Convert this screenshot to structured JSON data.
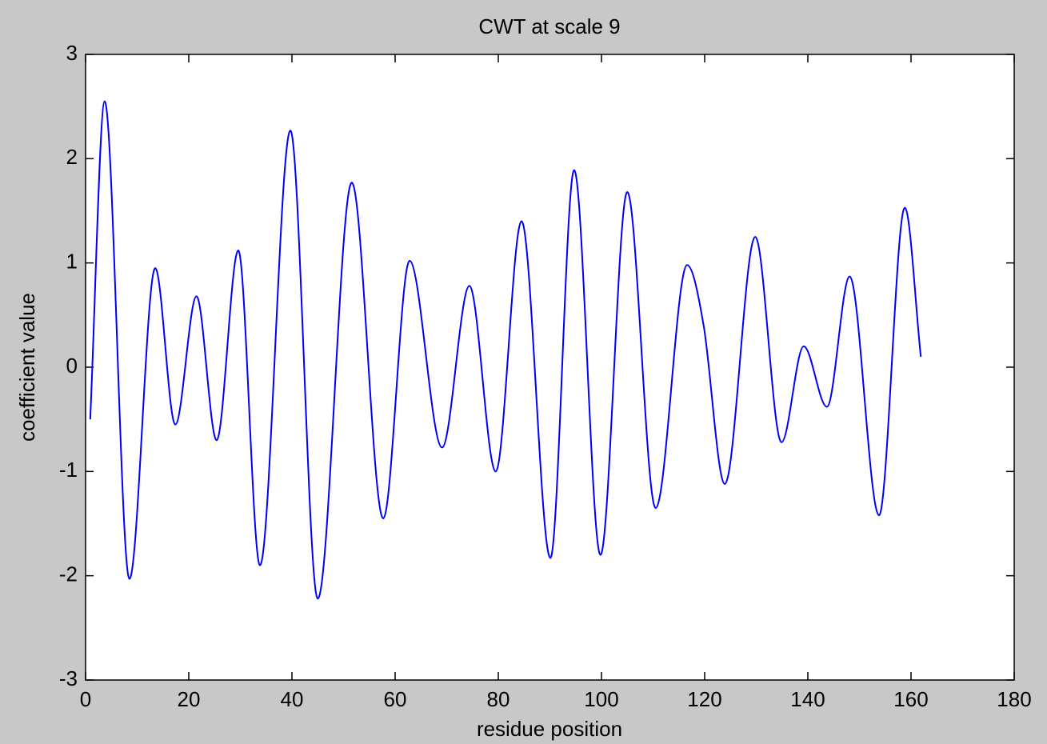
{
  "chart_data": {
    "type": "line",
    "title": "CWT at scale 9",
    "x_label": "residue position",
    "y_label": "coefficient value",
    "x": [
      0.9,
      3.7,
      8.5,
      13.5,
      17.4,
      21.5,
      25.4,
      29.6,
      33.8,
      39.7,
      45,
      51.6,
      57.7,
      62.8,
      69.1,
      74.4,
      79.5,
      84.5,
      90.1,
      94.7,
      99.8,
      105,
      110.5,
      116.6,
      119.8,
      123.9,
      129.8,
      134.9,
      139.2,
      143.7,
      148.1,
      153.8,
      158.8,
      161.9
    ],
    "series": [
      {
        "name": "CWT",
        "color": "#0000ff",
        "values": [
          -0.5,
          2.55,
          -2.03,
          0.95,
          -0.55,
          0.68,
          -0.7,
          1.12,
          -1.9,
          2.27,
          -2.22,
          1.77,
          -1.45,
          1.02,
          -0.77,
          0.78,
          -1.0,
          1.4,
          -1.83,
          1.89,
          -1.8,
          1.68,
          -1.35,
          0.98,
          0.4,
          -1.12,
          1.25,
          -0.72,
          0.2,
          -0.38,
          0.87,
          -1.42,
          1.53,
          0.1
        ]
      }
    ],
    "xlim": [
      0,
      180
    ],
    "xticks": [
      0,
      20,
      40,
      60,
      80,
      100,
      120,
      140,
      160,
      180
    ],
    "ylim": [
      -3,
      3
    ],
    "yticks": [
      -3,
      -2,
      -1,
      0,
      1,
      2,
      3
    ],
    "grid": false
  }
}
